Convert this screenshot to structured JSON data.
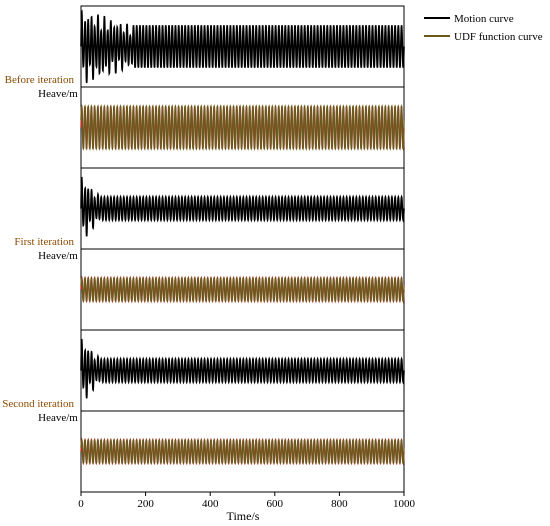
{
  "chart_data": {
    "type": "line",
    "xlabel": "Time/s",
    "xlim": [
      0,
      1000
    ],
    "x_ticks": [
      0,
      200,
      400,
      600,
      800,
      1000
    ],
    "legend": {
      "placement": "top-right",
      "entries": [
        {
          "name": "Motion curve",
          "color": "#000000"
        },
        {
          "name": "UDF function curve",
          "color": "#6b5a1e"
        }
      ]
    },
    "panels": [
      {
        "stage": "Before iteration",
        "ylabel": "Heave/m",
        "motion": {
          "cycles": 100,
          "transient_until": 160,
          "steady_amplitude": 0.55,
          "initial_amplitude": 1.0
        },
        "udf": {
          "cycles": 100,
          "amplitude": 0.55,
          "colors": [
            "#d42020",
            "#6b5a1e"
          ]
        }
      },
      {
        "stage": "First iteration",
        "ylabel": "Heave/m",
        "motion": {
          "cycles": 100,
          "transient_until": 60,
          "steady_amplitude": 0.3,
          "initial_amplitude": 0.9
        },
        "udf": {
          "cycles": 100,
          "amplitude": 0.3,
          "colors": [
            "#d42020",
            "#6b5a1e"
          ]
        }
      },
      {
        "stage": "Second iteration",
        "ylabel": "Heave/m",
        "motion": {
          "cycles": 100,
          "transient_until": 60,
          "steady_amplitude": 0.3,
          "initial_amplitude": 0.9
        },
        "udf": {
          "cycles": 100,
          "amplitude": 0.3,
          "colors": [
            "#d42020",
            "#6b5a1e"
          ]
        }
      }
    ]
  }
}
